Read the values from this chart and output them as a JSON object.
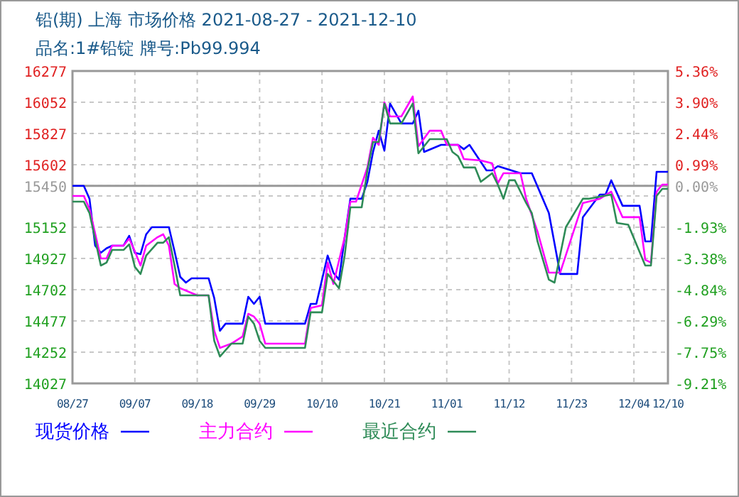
{
  "chart_data": {
    "type": "line",
    "title": "铅(期) 上海 市场价格 2021-08-27 - 2021-12-10",
    "subtitle": "品名:1#铅锭 牌号:Pb99.994",
    "xlim": [
      "2021-08-27",
      "2021-12-10"
    ],
    "xticks": [
      {
        "value": "2021-08-27",
        "label": "08/27"
      },
      {
        "value": "2021-09-07",
        "label": "09/07"
      },
      {
        "value": "2021-09-18",
        "label": "09/18"
      },
      {
        "value": "2021-09-29",
        "label": "09/29"
      },
      {
        "value": "2021-10-10",
        "label": "10/10"
      },
      {
        "value": "2021-10-21",
        "label": "10/21"
      },
      {
        "value": "2021-11-01",
        "label": "11/01"
      },
      {
        "value": "2021-11-12",
        "label": "11/12"
      },
      {
        "value": "2021-11-23",
        "label": "11/23"
      },
      {
        "value": "2021-12-04",
        "label": "12/04"
      },
      {
        "value": "2021-12-10",
        "label": "12/10"
      }
    ],
    "ylim": [
      14027,
      16277
    ],
    "yticks": [
      14027,
      14252,
      14477,
      14702,
      14927,
      15152,
      {
        "value": 15377,
        "label": null
      },
      15450,
      15602,
      15827,
      16052,
      16277
    ],
    "y2lim": [
      -9.21,
      5.36
    ],
    "y2ticks": [
      {
        "value": -9.21,
        "label": "-9.21%"
      },
      {
        "value": -7.75,
        "label": "-7.75%"
      },
      {
        "value": -6.29,
        "label": "-6.29%"
      },
      {
        "value": -4.84,
        "label": "-4.84%"
      },
      {
        "value": -3.38,
        "label": "-3.38%"
      },
      {
        "value": -1.93,
        "label": "-1.93%"
      },
      {
        "value": 0,
        "label": "0.00%"
      },
      {
        "value": 0.99,
        "label": "0.99%"
      },
      {
        "value": 2.44,
        "label": "2.44%"
      },
      {
        "value": 3.9,
        "label": "3.90%"
      },
      {
        "value": 5.36,
        "label": "5.36%"
      }
    ],
    "ref_lines": [
      {
        "axis": "y2",
        "value": 0,
        "color": "#999999"
      }
    ],
    "grid": true,
    "legend": "bottom",
    "marker": "none",
    "line_style": "solid",
    "series": [
      {
        "name": "现货价格",
        "color": "#0000ff",
        "x": [
          "2021-08-27",
          "2021-08-29",
          "2021-08-30",
          "2021-08-31",
          "2021-09-01",
          "2021-09-02",
          "2021-09-03",
          "2021-09-05",
          "2021-09-06",
          "2021-09-07",
          "2021-09-08",
          "2021-09-09",
          "2021-09-10",
          "2021-09-13",
          "2021-09-14",
          "2021-09-15",
          "2021-09-16",
          "2021-09-17",
          "2021-09-20",
          "2021-09-21",
          "2021-09-22",
          "2021-09-23",
          "2021-09-26",
          "2021-09-27",
          "2021-09-28",
          "2021-09-29",
          "2021-09-30",
          "2021-10-07",
          "2021-10-08",
          "2021-10-09",
          "2021-10-11",
          "2021-10-12",
          "2021-10-13",
          "2021-10-14",
          "2021-10-15",
          "2021-10-17",
          "2021-10-18",
          "2021-10-19",
          "2021-10-20",
          "2021-10-21",
          "2021-10-22",
          "2021-10-24",
          "2021-10-26",
          "2021-10-27",
          "2021-10-28",
          "2021-10-31",
          "2021-11-03",
          "2021-11-04",
          "2021-11-05",
          "2021-11-08",
          "2021-11-09",
          "2021-11-10",
          "2021-11-14",
          "2021-11-16",
          "2021-11-19",
          "2021-11-21",
          "2021-11-24",
          "2021-11-25",
          "2021-11-28",
          "2021-11-29",
          "2021-11-30",
          "2021-12-02",
          "2021-12-05",
          "2021-12-06",
          "2021-12-07",
          "2021-12-08",
          "2021-12-10"
        ],
        "values": [
          15450,
          15450,
          15357,
          15019,
          14968,
          15000,
          15019,
          15019,
          15090,
          14968,
          14958,
          15101,
          15152,
          15152,
          14978,
          14794,
          14753,
          14784,
          14784,
          14641,
          14406,
          14457,
          14457,
          14651,
          14600,
          14651,
          14457,
          14457,
          14600,
          14600,
          14948,
          14825,
          14774,
          15080,
          15357,
          15357,
          15479,
          15694,
          15847,
          15704,
          16042,
          15899,
          15899,
          15991,
          15694,
          15745,
          15745,
          15714,
          15745,
          15561,
          15561,
          15592,
          15541,
          15541,
          15254,
          14815,
          14815,
          15224,
          15387,
          15387,
          15490,
          15306,
          15306,
          15050,
          15050,
          15551,
          15551
        ]
      },
      {
        "name": "主力合约",
        "color": "#ff00ff",
        "x": [
          "2021-08-27",
          "2021-08-29",
          "2021-08-30",
          "2021-09-01",
          "2021-09-02",
          "2021-09-03",
          "2021-09-05",
          "2021-09-06",
          "2021-09-07",
          "2021-09-08",
          "2021-09-09",
          "2021-09-11",
          "2021-09-12",
          "2021-09-13",
          "2021-09-14",
          "2021-09-15",
          "2021-09-18",
          "2021-09-20",
          "2021-09-21",
          "2021-09-22",
          "2021-09-24",
          "2021-09-26",
          "2021-09-27",
          "2021-09-28",
          "2021-09-29",
          "2021-09-30",
          "2021-10-07",
          "2021-10-08",
          "2021-10-10",
          "2021-10-11",
          "2021-10-12",
          "2021-10-14",
          "2021-10-15",
          "2021-10-16",
          "2021-10-18",
          "2021-10-19",
          "2021-10-20",
          "2021-10-21",
          "2021-10-22",
          "2021-10-24",
          "2021-10-26",
          "2021-10-27",
          "2021-10-29",
          "2021-10-31",
          "2021-11-01",
          "2021-11-03",
          "2021-11-04",
          "2021-11-07",
          "2021-11-09",
          "2021-11-10",
          "2021-11-11",
          "2021-11-14",
          "2021-11-15",
          "2021-11-17",
          "2021-11-19",
          "2021-11-21",
          "2021-11-24",
          "2021-11-25",
          "2021-11-28",
          "2021-11-30",
          "2021-12-02",
          "2021-12-05",
          "2021-12-06",
          "2021-12-07",
          "2021-12-08",
          "2021-12-09",
          "2021-12-10"
        ],
        "values": [
          15377,
          15377,
          15285,
          14927,
          14927,
          15019,
          15019,
          15070,
          14978,
          14876,
          15019,
          15080,
          15101,
          15019,
          14743,
          14712,
          14661,
          14661,
          14406,
          14283,
          14313,
          14365,
          14528,
          14508,
          14457,
          14313,
          14313,
          14570,
          14590,
          14897,
          14743,
          15080,
          15336,
          15336,
          15582,
          15796,
          15745,
          16052,
          15950,
          15950,
          16093,
          15735,
          15847,
          15847,
          15745,
          15745,
          15643,
          15633,
          15612,
          15469,
          15541,
          15541,
          15357,
          15121,
          14825,
          14825,
          15203,
          15326,
          15357,
          15408,
          15224,
          15224,
          14917,
          14897,
          15408,
          15459,
          15459
        ]
      },
      {
        "name": "最近合约",
        "color": "#2e8b57",
        "x": [
          "2021-08-27",
          "2021-08-29",
          "2021-08-30",
          "2021-09-01",
          "2021-09-02",
          "2021-09-03",
          "2021-09-05",
          "2021-09-06",
          "2021-09-07",
          "2021-09-08",
          "2021-09-09",
          "2021-09-11",
          "2021-09-12",
          "2021-09-13",
          "2021-09-14",
          "2021-09-15",
          "2021-09-20",
          "2021-09-21",
          "2021-09-22",
          "2021-09-24",
          "2021-09-26",
          "2021-09-27",
          "2021-09-28",
          "2021-09-29",
          "2021-09-30",
          "2021-10-07",
          "2021-10-08",
          "2021-10-10",
          "2021-10-11",
          "2021-10-13",
          "2021-10-14",
          "2021-10-15",
          "2021-10-17",
          "2021-10-18",
          "2021-10-19",
          "2021-10-20",
          "2021-10-21",
          "2021-10-22",
          "2021-10-24",
          "2021-10-26",
          "2021-10-27",
          "2021-10-29",
          "2021-11-01",
          "2021-11-02",
          "2021-11-03",
          "2021-11-04",
          "2021-11-06",
          "2021-11-07",
          "2021-11-09",
          "2021-11-10",
          "2021-11-11",
          "2021-11-12",
          "2021-11-13",
          "2021-11-15",
          "2021-11-16",
          "2021-11-17",
          "2021-11-19",
          "2021-11-20",
          "2021-11-22",
          "2021-11-25",
          "2021-11-26",
          "2021-11-30",
          "2021-12-01",
          "2021-12-03",
          "2021-12-06",
          "2021-12-07",
          "2021-12-08",
          "2021-12-09",
          "2021-12-10"
        ],
        "values": [
          15336,
          15336,
          15254,
          14876,
          14897,
          14988,
          14988,
          15029,
          14866,
          14815,
          14948,
          15040,
          15040,
          15080,
          14876,
          14661,
          14661,
          14334,
          14221,
          14313,
          14313,
          14508,
          14457,
          14334,
          14283,
          14283,
          14539,
          14539,
          14815,
          14712,
          14948,
          15295,
          15295,
          15561,
          15766,
          15766,
          16042,
          15899,
          15899,
          16042,
          15684,
          15786,
          15786,
          15694,
          15663,
          15582,
          15582,
          15479,
          15541,
          15459,
          15357,
          15490,
          15490,
          15326,
          15254,
          15050,
          14774,
          14753,
          15152,
          15357,
          15357,
          15387,
          15183,
          15170,
          14876,
          14876,
          15377,
          15428,
          15428
        ]
      }
    ]
  }
}
